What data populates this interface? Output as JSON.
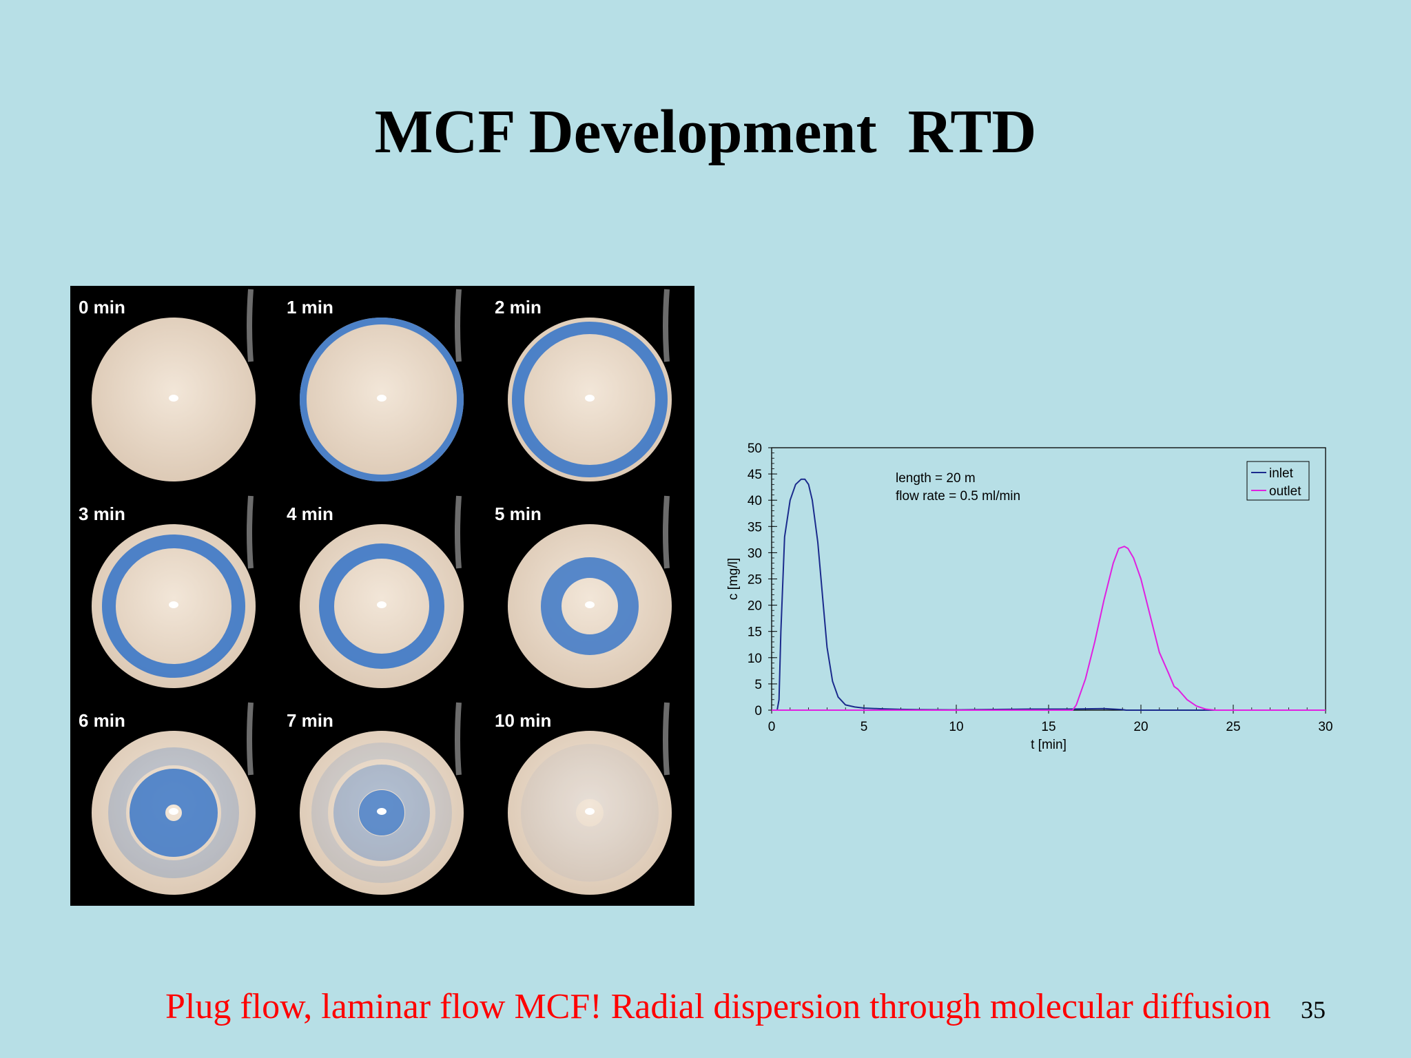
{
  "slide": {
    "title": "MCF Development  RTD",
    "caption": "Plug flow, laminar flow MCF! Radial dispersion through molecular diffusion",
    "page_number": "35"
  },
  "photo_grid": {
    "panels": [
      {
        "label": "0 min",
        "ring": "none"
      },
      {
        "label": "1 min",
        "ring": "edge"
      },
      {
        "label": "2 min",
        "ring": "outer"
      },
      {
        "label": "3 min",
        "ring": "outer-mid"
      },
      {
        "label": "4 min",
        "ring": "mid"
      },
      {
        "label": "5 min",
        "ring": "inner"
      },
      {
        "label": "6 min",
        "ring": "core"
      },
      {
        "label": "7 min",
        "ring": "faint-core"
      },
      {
        "label": "10 min",
        "ring": "faded"
      }
    ],
    "colors": {
      "disc": "#e8d9c8",
      "dye": "#3c78c8",
      "background": "#000000"
    }
  },
  "chart_data": {
    "type": "line",
    "title": "",
    "xlabel": "t [min]",
    "ylabel": "c [mg/l]",
    "xlim": [
      0,
      30
    ],
    "ylim": [
      0,
      50
    ],
    "xticks": [
      0,
      5,
      10,
      15,
      20,
      25,
      30
    ],
    "yticks": [
      0,
      5,
      10,
      15,
      20,
      25,
      30,
      35,
      40,
      45,
      50
    ],
    "annotations": [
      "length = 20 m",
      "flow rate = 0.5 ml/min"
    ],
    "legend_position": "top-right",
    "series": [
      {
        "name": "inlet",
        "color": "#1a2a8c",
        "x": [
          0,
          0.3,
          0.4,
          0.5,
          0.7,
          1.0,
          1.3,
          1.6,
          1.8,
          2.0,
          2.2,
          2.5,
          2.8,
          3.0,
          3.3,
          3.6,
          4.0,
          4.5,
          5.0,
          6.0,
          7.0,
          8.0,
          10.0,
          14.0,
          16.0,
          18.0,
          19.0,
          19.2,
          30.0
        ],
        "y": [
          0,
          0,
          2,
          15,
          33,
          40,
          43,
          44,
          44,
          43,
          40,
          32,
          20,
          12,
          5.5,
          2.5,
          1.0,
          0.6,
          0.4,
          0.25,
          0.15,
          0.1,
          0.05,
          0.2,
          0.2,
          0.3,
          0.1,
          0,
          0
        ]
      },
      {
        "name": "outlet",
        "color": "#e020e0",
        "x": [
          0,
          16.3,
          16.5,
          17.0,
          17.5,
          18.0,
          18.5,
          18.8,
          19.1,
          19.3,
          19.6,
          20.0,
          20.5,
          21.0,
          21.5,
          21.8,
          22.0,
          22.5,
          23.0,
          23.5,
          24.0,
          30.0
        ],
        "y": [
          0,
          0,
          1,
          6,
          13,
          21,
          28,
          30.8,
          31.2,
          30.8,
          29,
          25,
          18,
          11,
          7,
          4.5,
          4,
          2,
          0.8,
          0.2,
          0,
          0
        ]
      }
    ]
  }
}
